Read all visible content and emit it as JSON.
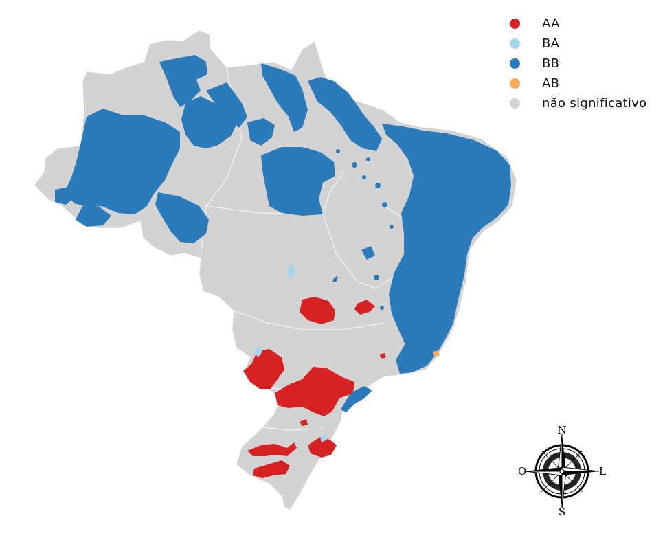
{
  "map": {
    "legend": [
      {
        "label": "AA",
        "color": "#d62222"
      },
      {
        "label": "BA",
        "color": "#a6d6ea"
      },
      {
        "label": "BB",
        "color": "#2b7bba"
      },
      {
        "label": "AB",
        "color": "#f7ab5c"
      },
      {
        "label": "não significativo",
        "color": "#d3d3d3"
      }
    ],
    "compass": {
      "north": "N",
      "south": "S",
      "east": "L",
      "west": "O"
    }
  }
}
